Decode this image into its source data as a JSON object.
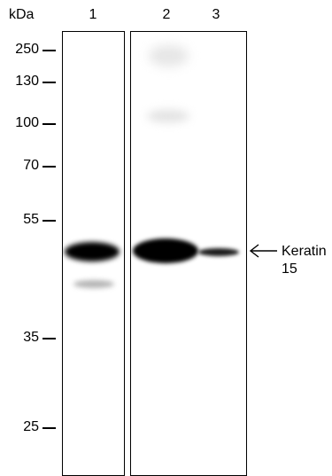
{
  "blot": {
    "unit_label": "kDa",
    "lanes": [
      "1",
      "2",
      "3"
    ],
    "markers": [
      "250",
      "130",
      "100",
      "70",
      "55",
      "35",
      "25"
    ],
    "target": {
      "line1": "Keratin",
      "line2": "15"
    }
  }
}
